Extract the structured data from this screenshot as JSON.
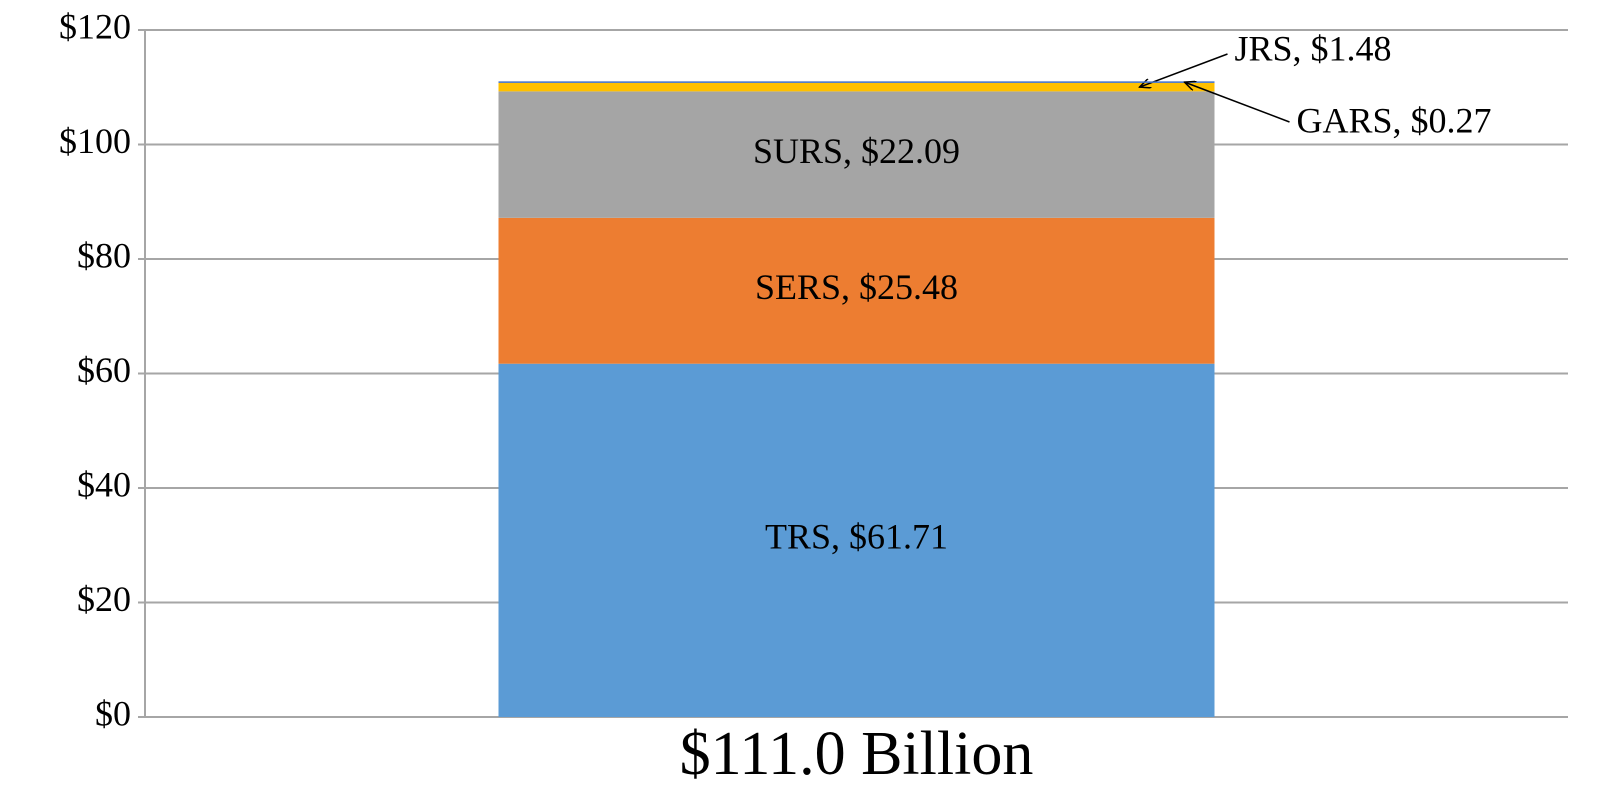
{
  "chart_data": {
    "type": "stacked_bar",
    "categories": [
      "$111.0 Billion"
    ],
    "series": [
      {
        "name": "TRS",
        "color": "#5b9bd5",
        "values": [
          61.71
        ],
        "value_labels": [
          "TRS, $61.71"
        ]
      },
      {
        "name": "SERS",
        "color": "#ed7d31",
        "values": [
          25.48
        ],
        "value_labels": [
          "SERS, $25.48"
        ]
      },
      {
        "name": "SURS",
        "color": "#a5a5a5",
        "values": [
          22.09
        ],
        "value_labels": [
          "SURS, $22.09"
        ]
      },
      {
        "name": "JRS",
        "color": "#ffc000",
        "values": [
          1.48
        ],
        "value_labels": [
          "JRS, $1.48"
        ]
      },
      {
        "name": "GARS",
        "color": "#4472c4",
        "values": [
          0.27
        ],
        "value_labels": [
          "GARS, $0.27"
        ]
      }
    ],
    "ylim": [
      0,
      120
    ],
    "yticks": [
      {
        "value": 0,
        "label": "$0"
      },
      {
        "value": 20,
        "label": "$20"
      },
      {
        "value": 40,
        "label": "$40"
      },
      {
        "value": 60,
        "label": "$60"
      },
      {
        "value": 80,
        "label": "$80"
      },
      {
        "value": 100,
        "label": "$100"
      },
      {
        "value": 120,
        "label": "$120"
      }
    ],
    "grid": true
  }
}
